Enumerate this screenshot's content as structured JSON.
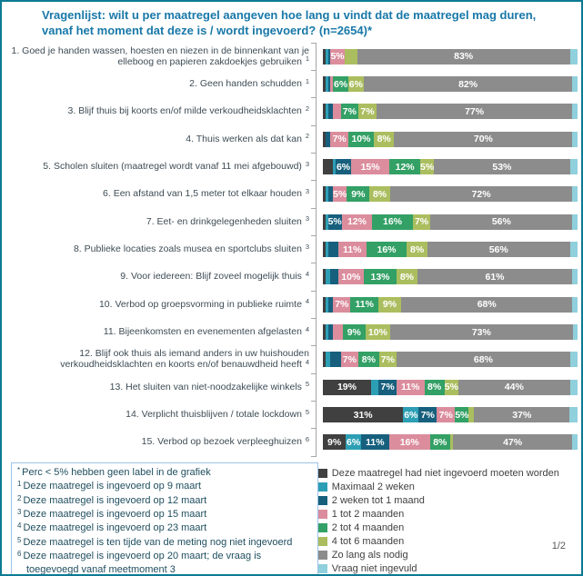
{
  "title": {
    "line1": "Vragenlijst: wilt u per maatregel aangeven hoe lang u vindt dat de maatregel mag duren,",
    "line2": "vanaf het moment dat deze is / wordt ingevoerd? (n=2654)*"
  },
  "page_number": "1/2",
  "colors": {
    "frame": "#0d7a94",
    "title": "#1878a8",
    "axis": "#a6a6a6",
    "category_text": "#3e4c55",
    "footnote_border": "#9dc3e6",
    "footnote_text": "#1f4e5f",
    "legend_text": "#404040"
  },
  "chart_data": {
    "type": "bar",
    "orientation": "horizontal",
    "stacked": true,
    "unit": "percent",
    "xlim": [
      0,
      100
    ],
    "grid": false,
    "legend_position": "bottom-right",
    "title": "Vragenlijst: wilt u per maatregel aangeven hoe lang u vindt dat de maatregel mag duren, vanaf het moment dat deze is / wordt ingevoerd? (n=2654)*",
    "series_names": [
      "Deze maatregel had niet ingevoerd moeten worden",
      "Maximaal 2 weken",
      "2 weken tot 1 maand",
      "1 tot 2 maanden",
      "2 tot 4 maanden",
      "4 tot 6 maanden",
      "Zo lang als nodig",
      "Vraag niet ingevuld"
    ],
    "series_colors": [
      "#404040",
      "#2d9fb5",
      "#17607d",
      "#db8d9d",
      "#33a065",
      "#abbe5f",
      "#8c8c8c",
      "#8fd0dc"
    ],
    "categories": [
      {
        "label": "1. Goed je handen wassen, hoesten en niezen in de binnenkant van je elleboog en papieren zakdoekjes gebruiken",
        "sup": "1"
      },
      {
        "label": "2. Geen handen schudden",
        "sup": "1"
      },
      {
        "label": "3. Blijf thuis bij koorts en/of milde verkoudheidsklachten",
        "sup": "2"
      },
      {
        "label": "4. Thuis werken als dat kan",
        "sup": "2"
      },
      {
        "label": "5. Scholen sluiten (maatregel wordt vanaf 11 mei afgebouwd)",
        "sup": "3"
      },
      {
        "label": "6. Een afstand van 1,5 meter tot elkaar houden",
        "sup": "3"
      },
      {
        "label": "7. Eet- en drinkgelegenheden sluiten",
        "sup": "3"
      },
      {
        "label": "8. Publieke locaties zoals musea en sportclubs sluiten",
        "sup": "3"
      },
      {
        "label": "9. Voor iedereen: Blijf zoveel mogelijk thuis",
        "sup": "4"
      },
      {
        "label": "10. Verbod op groepsvorming in publieke ruimte",
        "sup": "4"
      },
      {
        "label": "11. Bijeenkomsten en evenementen afgelasten",
        "sup": "4"
      },
      {
        "label": "12. Blijf ook thuis als iemand anders in uw huishouden verkoudheidsklachten en koorts en/of benauwdheid heeft",
        "sup": "4"
      },
      {
        "label": "13. Het sluiten van niet-noodzakelijke winkels",
        "sup": "5"
      },
      {
        "label": "14. Verplicht thuisblijven / totale lockdown",
        "sup": "5"
      },
      {
        "label": "15. Verbod op bezoek verpleeghuizen",
        "sup": "6"
      }
    ],
    "rows": [
      {
        "values": [
          1,
          1,
          1,
          5,
          0,
          5,
          83,
          3
        ],
        "labels": [
          "",
          "",
          "",
          "5%",
          "",
          "",
          "83%",
          ""
        ]
      },
      {
        "values": [
          1,
          1,
          1,
          1,
          6,
          6,
          82,
          2
        ],
        "labels": [
          "",
          "",
          "",
          "",
          "6%",
          "6%",
          "82%",
          ""
        ]
      },
      {
        "values": [
          1,
          1,
          2,
          3,
          7,
          7,
          77,
          2
        ],
        "labels": [
          "",
          "",
          "",
          "",
          "7%",
          "7%",
          "77%",
          ""
        ]
      },
      {
        "values": [
          1,
          0,
          2,
          7,
          10,
          8,
          70,
          2
        ],
        "labels": [
          "",
          "",
          "",
          "7%",
          "10%",
          "8%",
          "70%",
          ""
        ]
      },
      {
        "values": [
          4,
          1,
          6,
          15,
          12,
          5,
          53,
          3
        ],
        "labels": [
          "",
          "",
          "6%",
          "15%",
          "12%",
          "5%",
          "53%",
          ""
        ]
      },
      {
        "values": [
          1,
          1,
          2,
          5,
          9,
          8,
          72,
          2
        ],
        "labels": [
          "",
          "",
          "",
          "5%",
          "9%",
          "8%",
          "72%",
          ""
        ]
      },
      {
        "values": [
          1,
          1,
          5,
          12,
          16,
          7,
          56,
          2
        ],
        "labels": [
          "",
          "",
          "5%",
          "12%",
          "16%",
          "7%",
          "56%",
          ""
        ]
      },
      {
        "values": [
          1,
          1,
          4,
          11,
          16,
          8,
          56,
          3
        ],
        "labels": [
          "",
          "",
          "",
          "11%",
          "16%",
          "8%",
          "56%",
          ""
        ]
      },
      {
        "values": [
          1,
          2,
          3,
          10,
          13,
          8,
          61,
          2
        ],
        "labels": [
          "",
          "",
          "",
          "10%",
          "13%",
          "8%",
          "61%",
          ""
        ]
      },
      {
        "values": [
          1,
          1,
          2,
          7,
          11,
          9,
          68,
          2
        ],
        "labels": [
          "",
          "",
          "",
          "7%",
          "11%",
          "9%",
          "68%",
          ""
        ]
      },
      {
        "values": [
          1,
          1,
          2,
          4,
          9,
          10,
          73,
          2
        ],
        "labels": [
          "",
          "",
          "",
          "",
          "9%",
          "10%",
          "73%",
          ""
        ]
      },
      {
        "values": [
          1,
          2,
          4,
          7,
          8,
          7,
          68,
          3
        ],
        "labels": [
          "",
          "",
          "",
          "7%",
          "8%",
          "7%",
          "68%",
          ""
        ]
      },
      {
        "values": [
          19,
          3,
          7,
          11,
          8,
          5,
          44,
          3
        ],
        "labels": [
          "19%",
          "",
          "7%",
          "11%",
          "8%",
          "5%",
          "44%",
          ""
        ]
      },
      {
        "values": [
          31,
          6,
          7,
          7,
          5,
          2,
          37,
          3
        ],
        "labels": [
          "31%",
          "6%",
          "7%",
          "7%",
          "5%",
          "",
          "37%",
          ""
        ]
      },
      {
        "values": [
          9,
          6,
          11,
          16,
          8,
          1,
          47,
          2
        ],
        "labels": [
          "9%",
          "6%",
          "11%",
          "16%",
          "8%",
          "",
          "47%",
          ""
        ]
      }
    ]
  },
  "legend": {
    "items": [
      {
        "label": "Deze maatregel had niet ingevoerd moeten worden",
        "color": "#404040"
      },
      {
        "label": "Maximaal 2 weken",
        "color": "#2d9fb5"
      },
      {
        "label": "2 weken tot 1 maand",
        "color": "#17607d"
      },
      {
        "label": "1 tot 2 maanden",
        "color": "#db8d9d"
      },
      {
        "label": "2 tot 4 maanden",
        "color": "#33a065"
      },
      {
        "label": "4 tot 6 maanden",
        "color": "#abbe5f"
      },
      {
        "label": "Zo lang als nodig",
        "color": "#8c8c8c"
      },
      {
        "label": "Vraag niet ingevuld",
        "color": "#8fd0dc"
      }
    ]
  },
  "footnotes": [
    {
      "sym": "*",
      "text": "Perc < 5% hebben geen label in de grafiek"
    },
    {
      "sym": "1",
      "text": "Deze maatregel is ingevoerd op 9 maart"
    },
    {
      "sym": "2",
      "text": "Deze maatregel is ingevoerd op 12 maart"
    },
    {
      "sym": "3",
      "text": "Deze maatregel is ingevoerd op 15 maart"
    },
    {
      "sym": "4",
      "text": "Deze maatregel is ingevoerd op 23 maart"
    },
    {
      "sym": "5",
      "text": "Deze maatregel is ten tijde van de meting nog niet ingevoerd"
    },
    {
      "sym": "6",
      "text": "Deze maatregel is ingevoerd op 20 maart; de vraag is toegevoegd vanaf meetmoment 3"
    }
  ]
}
